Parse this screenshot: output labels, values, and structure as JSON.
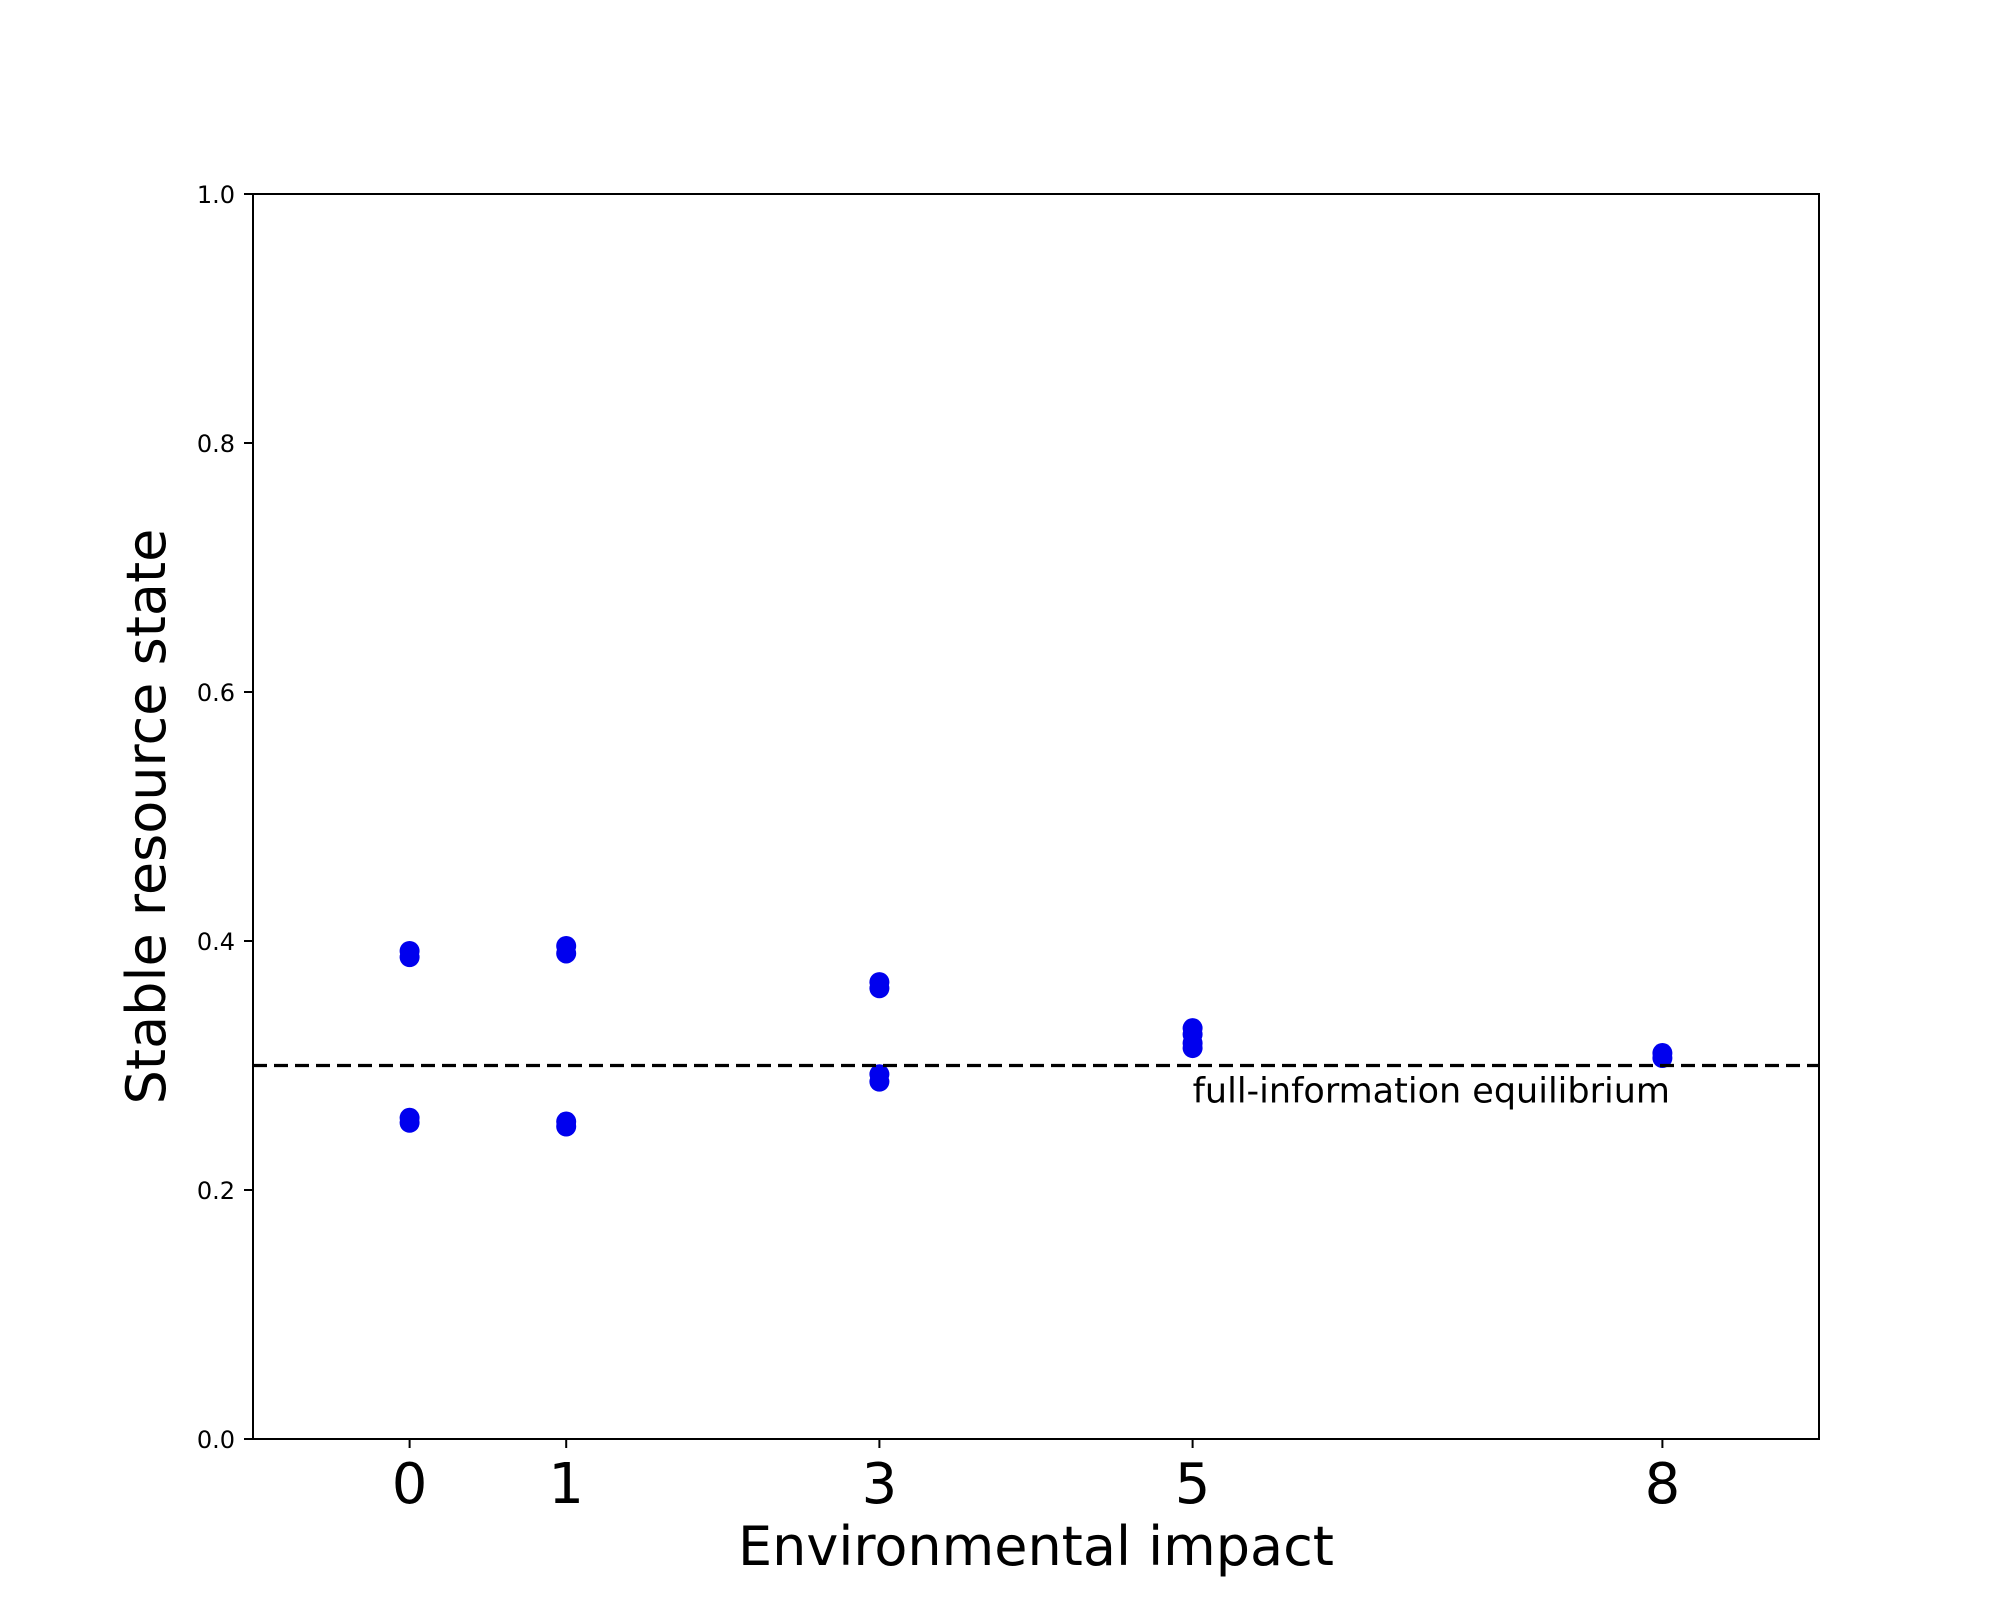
{
  "chart_data": {
    "type": "scatter",
    "xlabel": "Environmental impact",
    "ylabel": "Stable resource state",
    "xlim": [
      -1,
      9
    ],
    "ylim": [
      0.0,
      1.0
    ],
    "x_ticks": [
      0,
      1,
      3,
      5,
      8
    ],
    "y_ticks": [
      0.0,
      0.2,
      0.4,
      0.6,
      0.8,
      1.0
    ],
    "y_tick_labels": [
      "0.0",
      "0.2",
      "0.4",
      "0.6",
      "0.8",
      "1.0"
    ],
    "grid": false,
    "series": [
      {
        "color": "#0000ee",
        "points": [
          {
            "x": 0,
            "y": 0.392
          },
          {
            "x": 0,
            "y": 0.387
          },
          {
            "x": 0,
            "y": 0.258
          },
          {
            "x": 0,
            "y": 0.254
          },
          {
            "x": 1,
            "y": 0.396
          },
          {
            "x": 1,
            "y": 0.39
          },
          {
            "x": 1,
            "y": 0.255
          },
          {
            "x": 1,
            "y": 0.251
          },
          {
            "x": 3,
            "y": 0.367
          },
          {
            "x": 3,
            "y": 0.362
          },
          {
            "x": 3,
            "y": 0.293
          },
          {
            "x": 3,
            "y": 0.287
          },
          {
            "x": 5,
            "y": 0.33
          },
          {
            "x": 5,
            "y": 0.325
          },
          {
            "x": 5,
            "y": 0.318
          },
          {
            "x": 5,
            "y": 0.314
          },
          {
            "x": 8,
            "y": 0.31
          },
          {
            "x": 8,
            "y": 0.306
          }
        ]
      }
    ],
    "reference_line": {
      "y": 0.3,
      "style": "dashed",
      "color": "#000000",
      "label": "full-information equilibrium",
      "label_x": 5
    }
  }
}
